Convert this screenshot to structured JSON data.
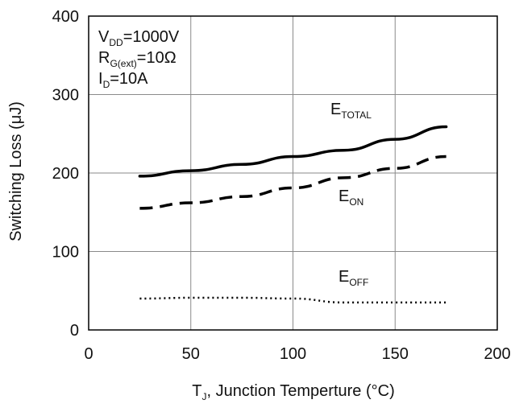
{
  "chart_data": {
    "type": "line",
    "title": "",
    "xlabel": {
      "main": "T",
      "sub": "J",
      "rest": ", Junction Temperture (°C)"
    },
    "ylabel": "Switching Loss (μJ)",
    "xlim": [
      0,
      200
    ],
    "ylim": [
      0,
      400
    ],
    "xticks": [
      0,
      50,
      100,
      150,
      200
    ],
    "yticks": [
      0,
      100,
      200,
      300,
      400
    ],
    "grid": true,
    "conditions": [
      {
        "main": "V",
        "sub": "DD",
        "rest": "=1000V"
      },
      {
        "main": "R",
        "sub": "G(ext)",
        "rest": "=10Ω"
      },
      {
        "main": "I",
        "sub": "D",
        "rest": "=10A"
      }
    ],
    "series": [
      {
        "name": "E_TOTAL",
        "label_main": "E",
        "label_sub": "TOTAL",
        "style": "solid",
        "x": [
          25,
          50,
          75,
          100,
          125,
          150,
          175
        ],
        "y": [
          196,
          203,
          211,
          221,
          229,
          243,
          259
        ]
      },
      {
        "name": "E_ON",
        "label_main": "E",
        "label_sub": "ON",
        "style": "dashed",
        "x": [
          25,
          50,
          75,
          100,
          125,
          150,
          175
        ],
        "y": [
          155,
          162,
          170,
          181,
          194,
          206,
          221
        ]
      },
      {
        "name": "E_OFF",
        "label_main": "E",
        "label_sub": "OFF",
        "style": "dotted",
        "x": [
          25,
          50,
          75,
          100,
          125,
          150,
          175
        ],
        "y": [
          40,
          41,
          41,
          40,
          35,
          35,
          35
        ]
      }
    ]
  }
}
